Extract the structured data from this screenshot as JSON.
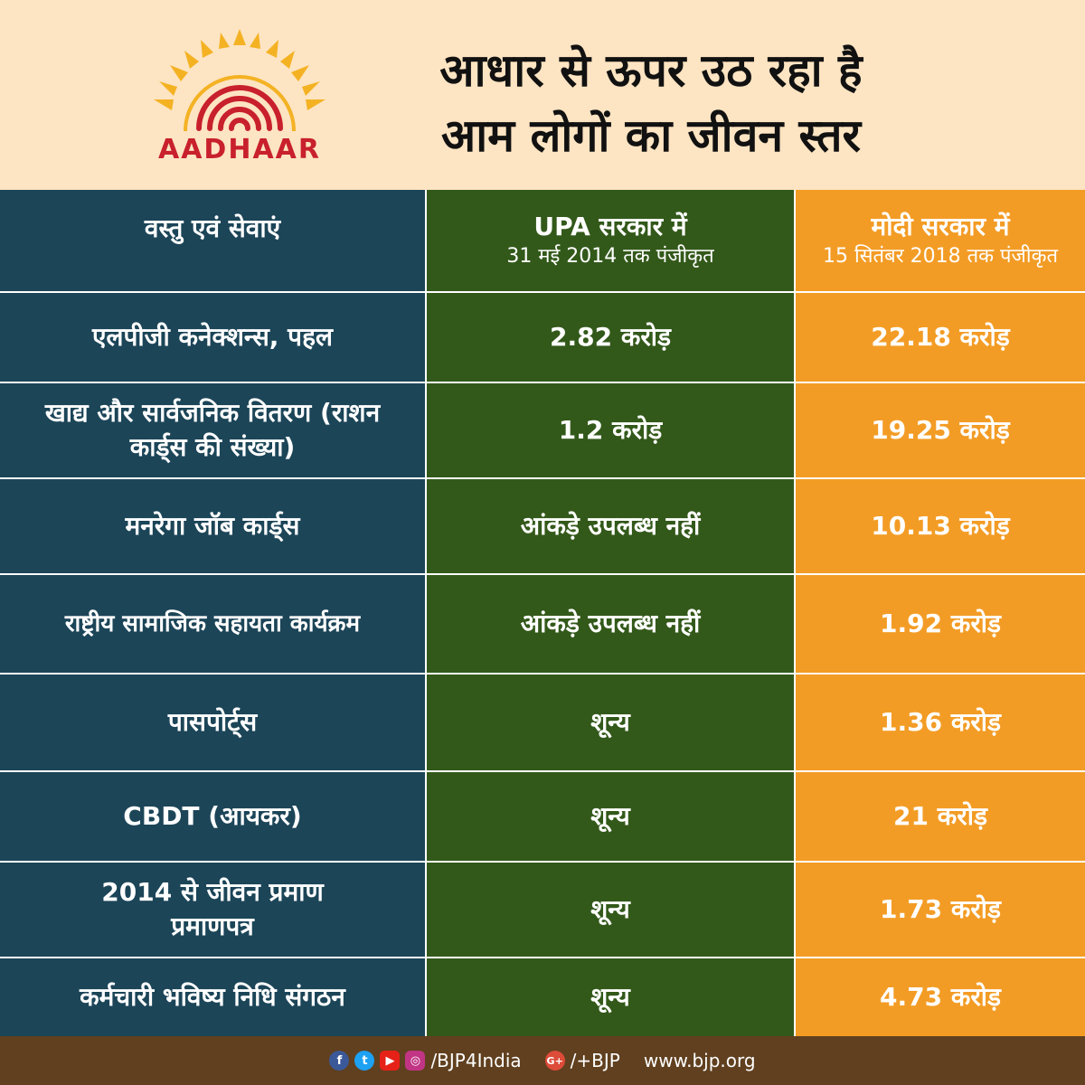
{
  "header": {
    "logo_text": "AADHAAR",
    "title_line1": "आधार से ऊपर उठ रहा है",
    "title_line2": "आम लोगों का जीवन स्तर"
  },
  "table": {
    "col1_header": "वस्तु एवं सेवाएं",
    "col2_header": "UPA सरकार में",
    "col2_sub": "31 मई 2014 तक पंजीकृत",
    "col3_header": "मोदी सरकार में",
    "col3_sub": "15 सितंबर 2018 तक पंजीकृत",
    "rows": [
      {
        "item": "एलपीजी कनेक्शन्स, पहल",
        "upa": "2.82 करोड़",
        "modi": "22.18 करोड़"
      },
      {
        "item": "खाद्य और सार्वजनिक वितरण (राशन कार्ड्स की संख्या)",
        "upa": "1.2 करोड़",
        "modi": "19.25 करोड़"
      },
      {
        "item": "मनरेगा जॉब कार्ड्स",
        "upa": "आंकड़े उपलब्ध नहीं",
        "modi": "10.13  करोड़"
      },
      {
        "item": "राष्ट्रीय सामाजिक सहायता कार्यक्रम",
        "upa": "आंकड़े उपलब्ध नहीं",
        "modi": "1.92 करोड़"
      },
      {
        "item": "पासपोर्ट्स",
        "upa": "शून्य",
        "modi": "1.36 करोड़"
      },
      {
        "item": "CBDT (आयकर)",
        "upa": "शून्य",
        "modi": "21 करोड़"
      },
      {
        "item": "2014 से जीवन प्रमाण प्रमाणपत्र",
        "upa": "शून्य",
        "modi": "1.73 करोड़"
      },
      {
        "item": "कर्मचारी भविष्य निधि संगठन",
        "upa": "शून्य",
        "modi": "4.73 करोड़"
      }
    ]
  },
  "footer": {
    "social_handle": "/BJP4India",
    "gplus_handle": "/+BJP",
    "website": "www.bjp.org"
  },
  "colors": {
    "header_bg": "#fde4c2",
    "col1_bg": "#1c4558",
    "col2_bg": "#33591a",
    "col3_bg": "#f39c25",
    "footer_bg": "#60401f"
  }
}
